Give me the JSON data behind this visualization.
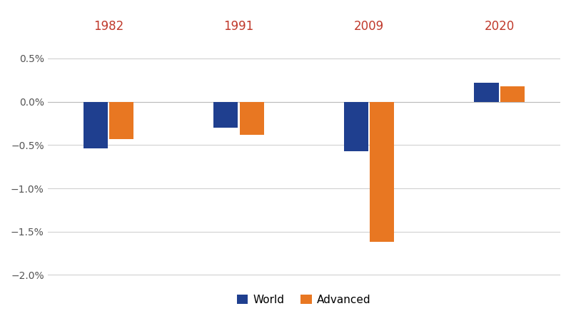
{
  "years": [
    "1982",
    "1991",
    "2009",
    "2020"
  ],
  "world_values": [
    -0.54,
    -0.3,
    -0.57,
    0.22
  ],
  "advanced_values": [
    -0.43,
    -0.38,
    -1.62,
    0.18
  ],
  "world_color": "#1F3F8F",
  "advanced_color": "#E87722",
  "year_label_color": "#C0392B",
  "ylim": [
    -2.1,
    0.7
  ],
  "yticks": [
    0.5,
    0.0,
    -0.5,
    -1.0,
    -1.5,
    -2.0
  ],
  "background_color": "#FFFFFF",
  "grid_color": "#D0D0D0",
  "bar_width": 0.28,
  "group_positions": [
    1.0,
    2.5,
    4.0,
    5.5
  ],
  "legend_labels": [
    "World",
    "Advanced"
  ],
  "figsize": [
    8.0,
    4.5
  ],
  "dpi": 100
}
